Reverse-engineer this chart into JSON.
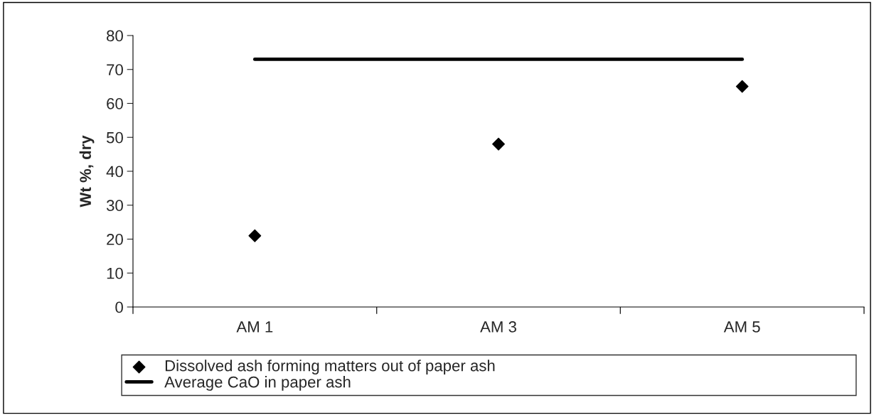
{
  "chart_data": {
    "type": "scatter",
    "ylabel": "Wt %, dry",
    "categories": [
      "AM 1",
      "AM 3",
      "AM 5"
    ],
    "series": [
      {
        "name": "Dissolved ash forming matters out of paper ash",
        "color": "#000000",
        "marker": "diamond",
        "values": [
          21,
          48,
          65
        ]
      },
      {
        "name": "Average CaO in paper ash",
        "type": "line",
        "color": "#000000",
        "marker": "none",
        "line_style": "solid",
        "values": [
          73,
          73,
          73
        ]
      }
    ],
    "ylim": [
      0,
      80
    ],
    "yticks": [
      0,
      10,
      20,
      30,
      40,
      50,
      60,
      70,
      80
    ],
    "grid": false,
    "legend": "bottom"
  }
}
